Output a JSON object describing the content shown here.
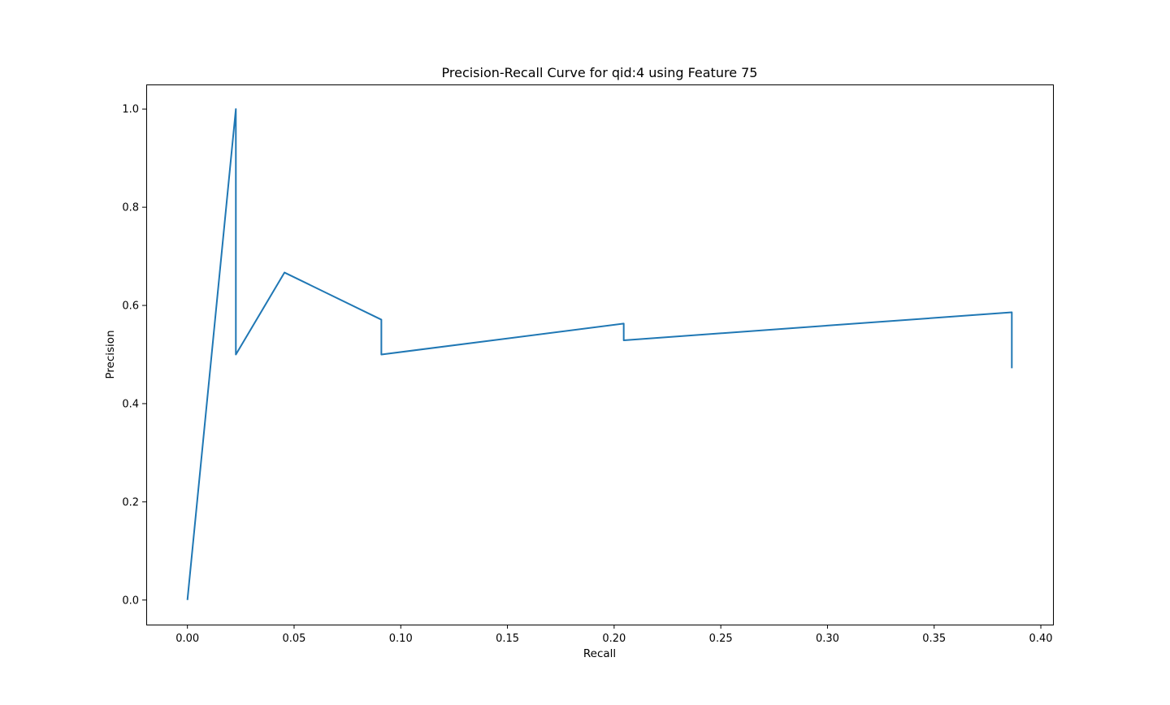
{
  "chart_data": {
    "type": "line",
    "title": "Precision-Recall Curve for qid:4 using Feature 75",
    "xlabel": "Recall",
    "ylabel": "Precision",
    "xlim": [
      -0.0193,
      0.4057
    ],
    "ylim": [
      -0.05,
      1.05
    ],
    "xticks": [
      0.0,
      0.05,
      0.1,
      0.15,
      0.2,
      0.25,
      0.3,
      0.35,
      0.4
    ],
    "xtick_labels": [
      "0.00",
      "0.05",
      "0.10",
      "0.15",
      "0.20",
      "0.25",
      "0.30",
      "0.35",
      "0.40"
    ],
    "yticks": [
      0.0,
      0.2,
      0.4,
      0.6,
      0.8,
      1.0
    ],
    "ytick_labels": [
      "0.0",
      "0.2",
      "0.4",
      "0.6",
      "0.8",
      "1.0"
    ],
    "grid": false,
    "legend": "none",
    "series": [
      {
        "color": "#1f77b4",
        "x": [
          0.0,
          0.0227,
          0.0227,
          0.0455,
          0.0909,
          0.0909,
          0.2045,
          0.2045,
          0.3864,
          0.3864
        ],
        "y": [
          0.0,
          1.0,
          0.5,
          0.667,
          0.571,
          0.5,
          0.563,
          0.529,
          0.586,
          0.472
        ]
      }
    ]
  }
}
